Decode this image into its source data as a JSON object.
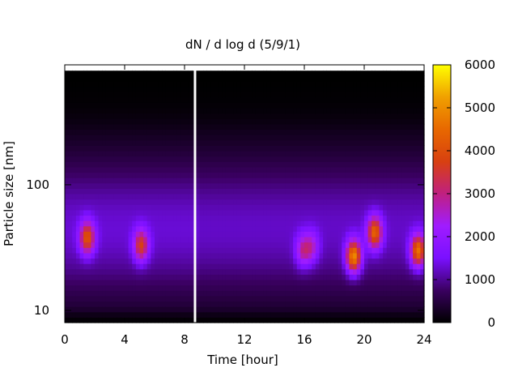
{
  "chart_data": {
    "type": "heatmap",
    "title": "dN / d log d (5/9/1)",
    "xlabel": "Time [hour]",
    "ylabel": "Particle size [nm]",
    "xlim": [
      0,
      24
    ],
    "ylim": [
      8,
      900
    ],
    "y_scale": "log",
    "x_ticks": [
      0,
      4,
      8,
      12,
      16,
      20,
      24
    ],
    "x_tick_labels": [
      "0",
      "4",
      "8",
      "12",
      "16",
      "20",
      "24"
    ],
    "y_ticks": [
      10,
      100
    ],
    "y_tick_labels": [
      "10",
      "100"
    ],
    "colorbar": {
      "range": [
        0,
        6000
      ],
      "ticks": [
        0,
        1000,
        2000,
        3000,
        4000,
        5000,
        6000
      ],
      "tick_labels": [
        "0",
        "1000",
        "2000",
        "3000",
        "4000",
        "5000",
        "6000"
      ],
      "colormap": [
        "#000000",
        "#3a0060",
        "#7a10ff",
        "#a01cff",
        "#c02080",
        "#d84010",
        "#e86800",
        "#f0a000",
        "#ffff00"
      ],
      "placement": "right"
    },
    "background_level": 1300,
    "upper_size_edge_nm": 850,
    "data_gap_hour": 8.7,
    "events": [
      {
        "time_hour": 1.5,
        "size_nm": 38,
        "peak": 4200
      },
      {
        "time_hour": 5.1,
        "size_nm": 33,
        "peak": 3800
      },
      {
        "time_hour": 15.9,
        "size_nm": 30,
        "peak": 2900
      },
      {
        "time_hour": 16.5,
        "size_nm": 32,
        "peak": 2600
      },
      {
        "time_hour": 19.3,
        "size_nm": 27,
        "peak": 5200
      },
      {
        "time_hour": 20.7,
        "size_nm": 42,
        "peak": 4500
      },
      {
        "time_hour": 23.6,
        "size_nm": 30,
        "peak": 4800
      }
    ],
    "grid": false
  }
}
